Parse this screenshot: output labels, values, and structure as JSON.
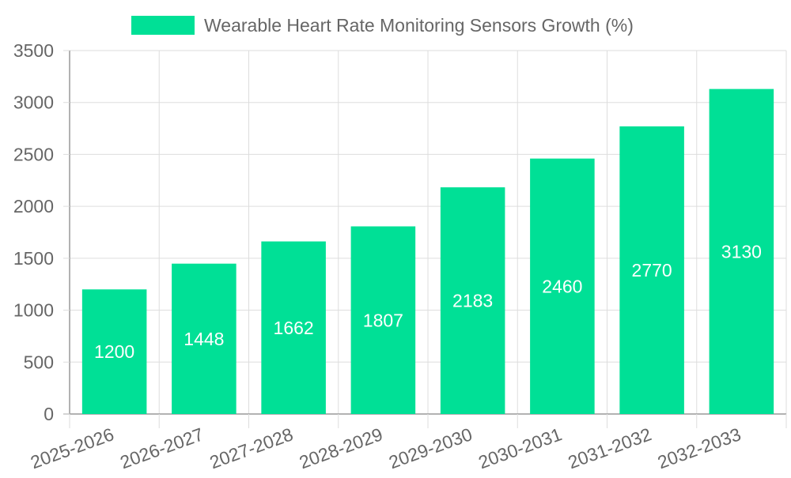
{
  "chart_data": {
    "type": "bar",
    "title": "",
    "xlabel": "",
    "ylabel": "",
    "categories": [
      "2025-2026",
      "2026-2027",
      "2027-2028",
      "2028-2029",
      "2029-2030",
      "2030-2031",
      "2031-2032",
      "2032-2033"
    ],
    "series": [
      {
        "name": "Wearable Heart Rate Monitoring Sensors Growth (%)",
        "values": [
          1200,
          1448,
          1662,
          1807,
          2183,
          2460,
          2770,
          3130
        ],
        "color": "#00e096"
      }
    ],
    "ylim": [
      0,
      3500
    ],
    "yticks": [
      0,
      500,
      1000,
      1500,
      2000,
      2500,
      3000,
      3500
    ],
    "grid": true,
    "legend": "top",
    "data_labels": true,
    "colors": {
      "bar": "#00e096",
      "grid": "#dddddd",
      "axis": "#999999",
      "tick_text": "#666666",
      "label_text": "#ffffff"
    }
  }
}
